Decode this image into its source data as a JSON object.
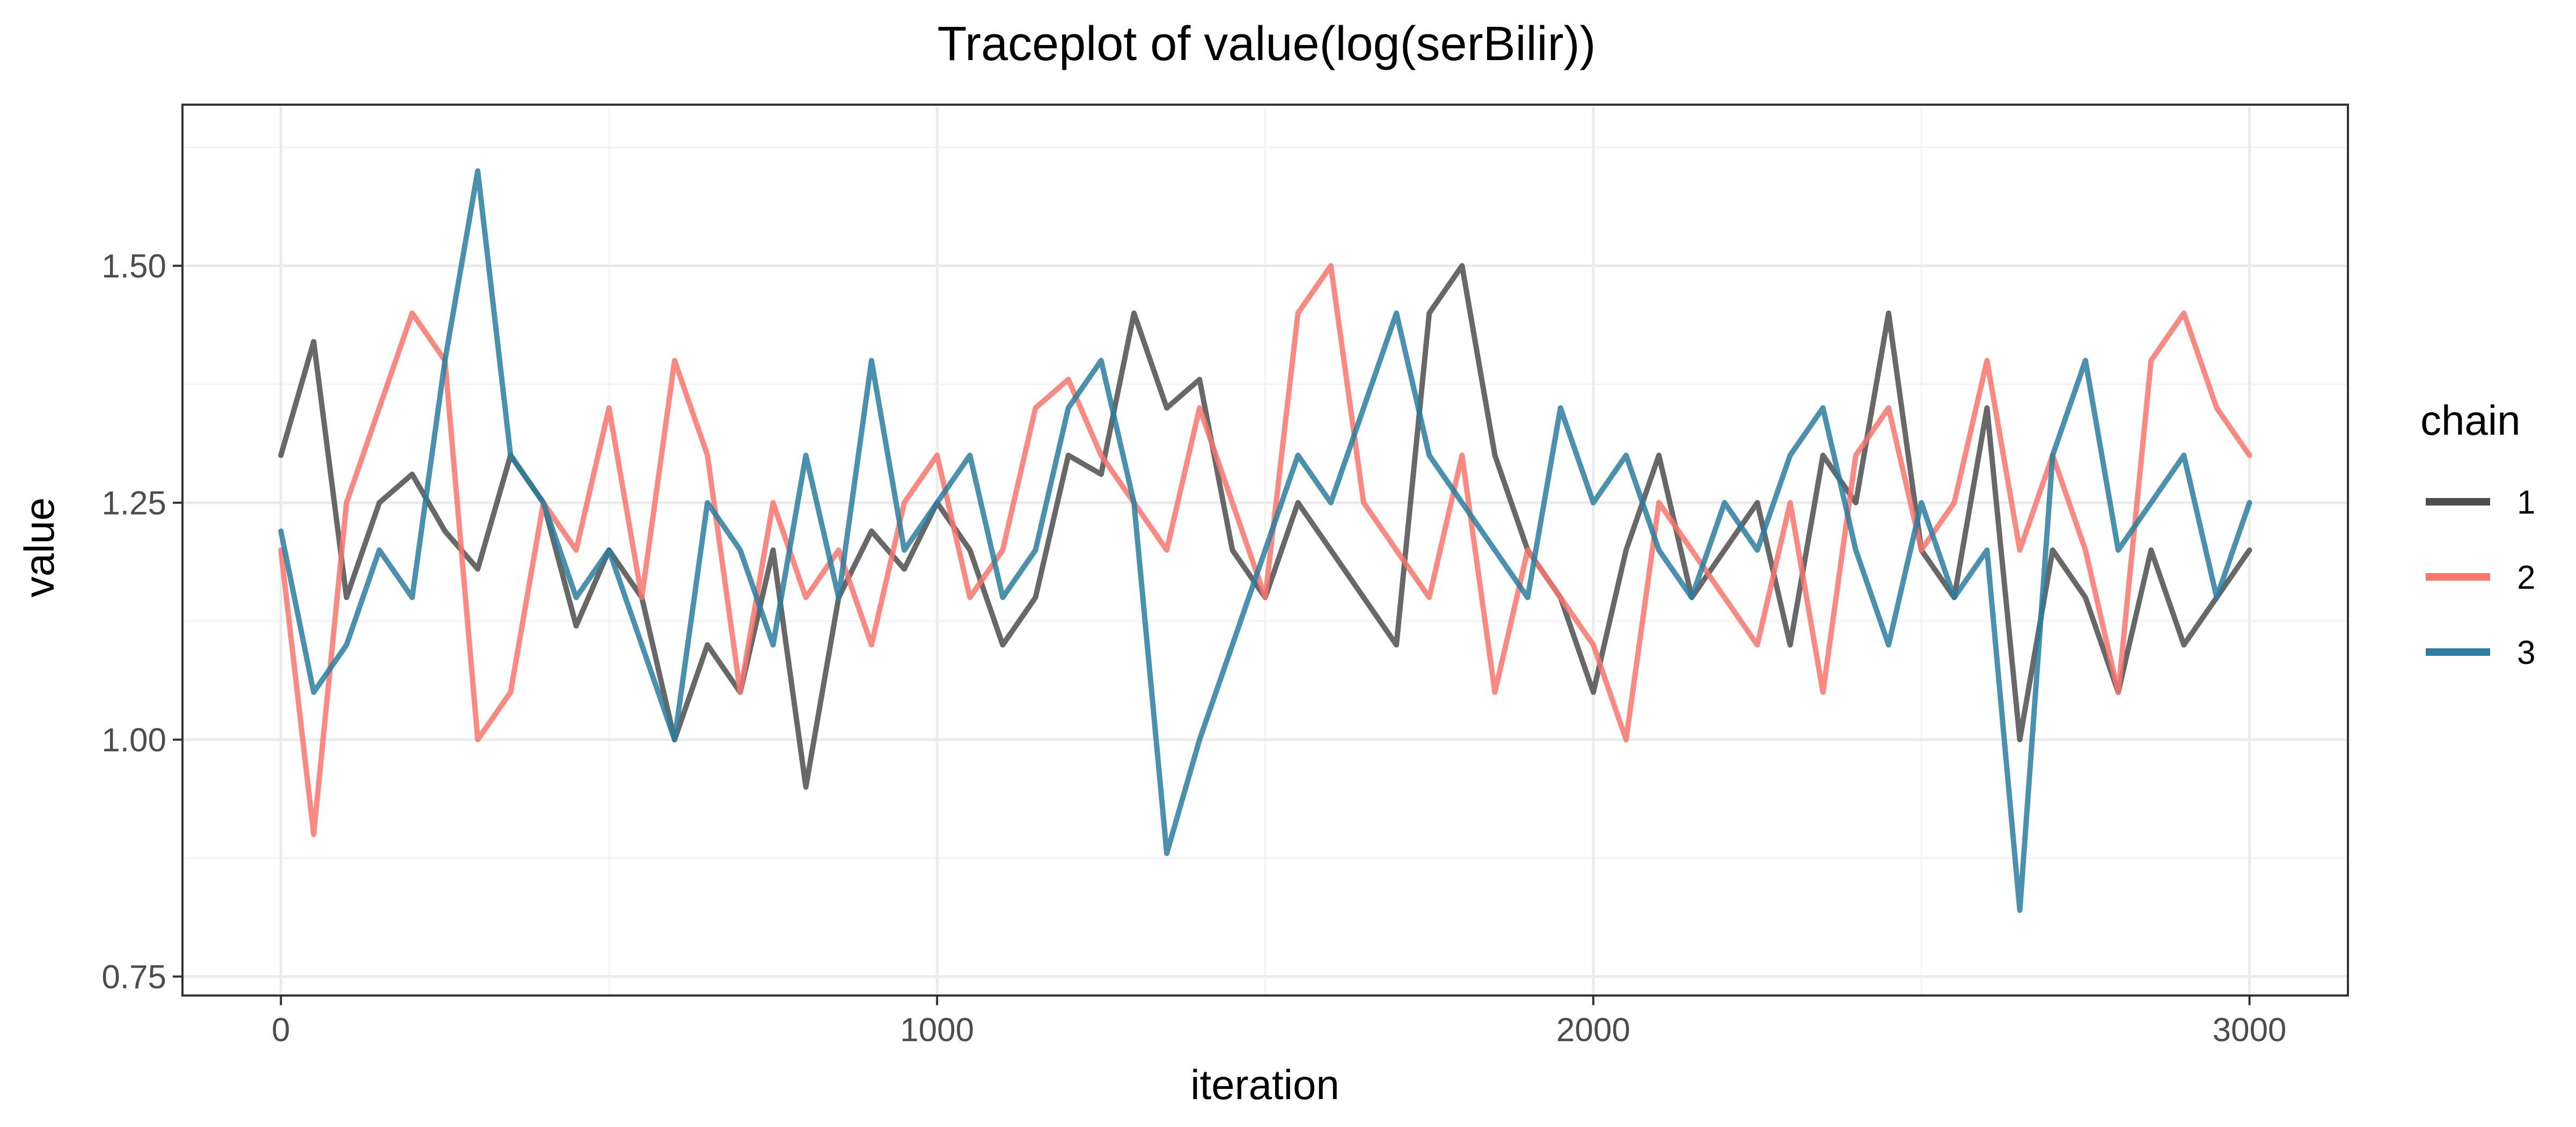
{
  "chart_data": {
    "type": "line",
    "title": "Traceplot of  value(log(serBilir))",
    "xlabel": "iteration",
    "ylabel": "value",
    "xlim": [
      -150,
      3150
    ],
    "ylim": [
      0.73,
      1.67
    ],
    "x_ticks": [
      0,
      1000,
      2000,
      3000
    ],
    "x_tick_labels": [
      "0",
      "1000",
      "2000",
      "3000"
    ],
    "y_ticks": [
      0.75,
      1.0,
      1.25,
      1.5
    ],
    "y_tick_labels": [
      "0.75",
      "1.00",
      "1.25",
      "1.50"
    ],
    "grid": true,
    "legend": {
      "title": "chain",
      "position": "right"
    },
    "series": [
      {
        "name": "1",
        "color": "#4d4d4d",
        "x": [
          0,
          50,
          100,
          150,
          200,
          250,
          300,
          350,
          400,
          450,
          500,
          550,
          600,
          650,
          700,
          750,
          800,
          850,
          900,
          950,
          1000,
          1050,
          1100,
          1150,
          1200,
          1250,
          1300,
          1350,
          1400,
          1450,
          1500,
          1550,
          1600,
          1650,
          1700,
          1750,
          1800,
          1850,
          1900,
          1950,
          2000,
          2050,
          2100,
          2150,
          2200,
          2250,
          2300,
          2350,
          2400,
          2450,
          2500,
          2550,
          2600,
          2650,
          2700,
          2750,
          2800,
          2850,
          2900,
          2950,
          3000
        ],
        "values": [
          1.3,
          1.42,
          1.15,
          1.25,
          1.28,
          1.22,
          1.18,
          1.3,
          1.25,
          1.12,
          1.2,
          1.15,
          1.0,
          1.1,
          1.05,
          1.2,
          0.95,
          1.15,
          1.22,
          1.18,
          1.25,
          1.2,
          1.1,
          1.15,
          1.3,
          1.28,
          1.45,
          1.35,
          1.38,
          1.2,
          1.15,
          1.25,
          1.2,
          1.15,
          1.1,
          1.45,
          1.5,
          1.3,
          1.2,
          1.15,
          1.05,
          1.2,
          1.3,
          1.15,
          1.2,
          1.25,
          1.1,
          1.3,
          1.25,
          1.45,
          1.2,
          1.15,
          1.35,
          1.0,
          1.2,
          1.15,
          1.05,
          1.2,
          1.1,
          1.15,
          1.2
        ]
      },
      {
        "name": "2",
        "color": "#f8766d",
        "x": [
          0,
          50,
          100,
          150,
          200,
          250,
          300,
          350,
          400,
          450,
          500,
          550,
          600,
          650,
          700,
          750,
          800,
          850,
          900,
          950,
          1000,
          1050,
          1100,
          1150,
          1200,
          1250,
          1300,
          1350,
          1400,
          1450,
          1500,
          1550,
          1600,
          1650,
          1700,
          1750,
          1800,
          1850,
          1900,
          1950,
          2000,
          2050,
          2100,
          2150,
          2200,
          2250,
          2300,
          2350,
          2400,
          2450,
          2500,
          2550,
          2600,
          2650,
          2700,
          2750,
          2800,
          2850,
          2900,
          2950,
          3000
        ],
        "values": [
          1.2,
          0.9,
          1.25,
          1.35,
          1.45,
          1.4,
          1.0,
          1.05,
          1.25,
          1.2,
          1.35,
          1.15,
          1.4,
          1.3,
          1.05,
          1.25,
          1.15,
          1.2,
          1.1,
          1.25,
          1.3,
          1.15,
          1.2,
          1.35,
          1.38,
          1.3,
          1.25,
          1.2,
          1.35,
          1.25,
          1.15,
          1.45,
          1.5,
          1.25,
          1.2,
          1.15,
          1.3,
          1.05,
          1.2,
          1.15,
          1.1,
          1.0,
          1.25,
          1.2,
          1.15,
          1.1,
          1.25,
          1.05,
          1.3,
          1.35,
          1.2,
          1.25,
          1.4,
          1.2,
          1.3,
          1.2,
          1.05,
          1.4,
          1.45,
          1.35,
          1.3
        ]
      },
      {
        "name": "3",
        "color": "#2c7d9e",
        "x": [
          0,
          50,
          100,
          150,
          200,
          250,
          300,
          350,
          400,
          450,
          500,
          550,
          600,
          650,
          700,
          750,
          800,
          850,
          900,
          950,
          1000,
          1050,
          1100,
          1150,
          1200,
          1250,
          1300,
          1350,
          1400,
          1450,
          1500,
          1550,
          1600,
          1650,
          1700,
          1750,
          1800,
          1850,
          1900,
          1950,
          2000,
          2050,
          2100,
          2150,
          2200,
          2250,
          2300,
          2350,
          2400,
          2450,
          2500,
          2550,
          2600,
          2650,
          2700,
          2750,
          2800,
          2850,
          2900,
          2950,
          3000
        ],
        "values": [
          1.22,
          1.05,
          1.1,
          1.2,
          1.15,
          1.4,
          1.6,
          1.3,
          1.25,
          1.15,
          1.2,
          1.1,
          1.0,
          1.25,
          1.2,
          1.1,
          1.3,
          1.15,
          1.4,
          1.2,
          1.25,
          1.3,
          1.15,
          1.2,
          1.35,
          1.4,
          1.25,
          0.88,
          1.0,
          1.1,
          1.2,
          1.3,
          1.25,
          1.35,
          1.45,
          1.3,
          1.25,
          1.2,
          1.15,
          1.35,
          1.25,
          1.3,
          1.2,
          1.15,
          1.25,
          1.2,
          1.3,
          1.35,
          1.2,
          1.1,
          1.25,
          1.15,
          1.2,
          0.82,
          1.3,
          1.4,
          1.2,
          1.25,
          1.3,
          1.15,
          1.25
        ]
      }
    ]
  }
}
